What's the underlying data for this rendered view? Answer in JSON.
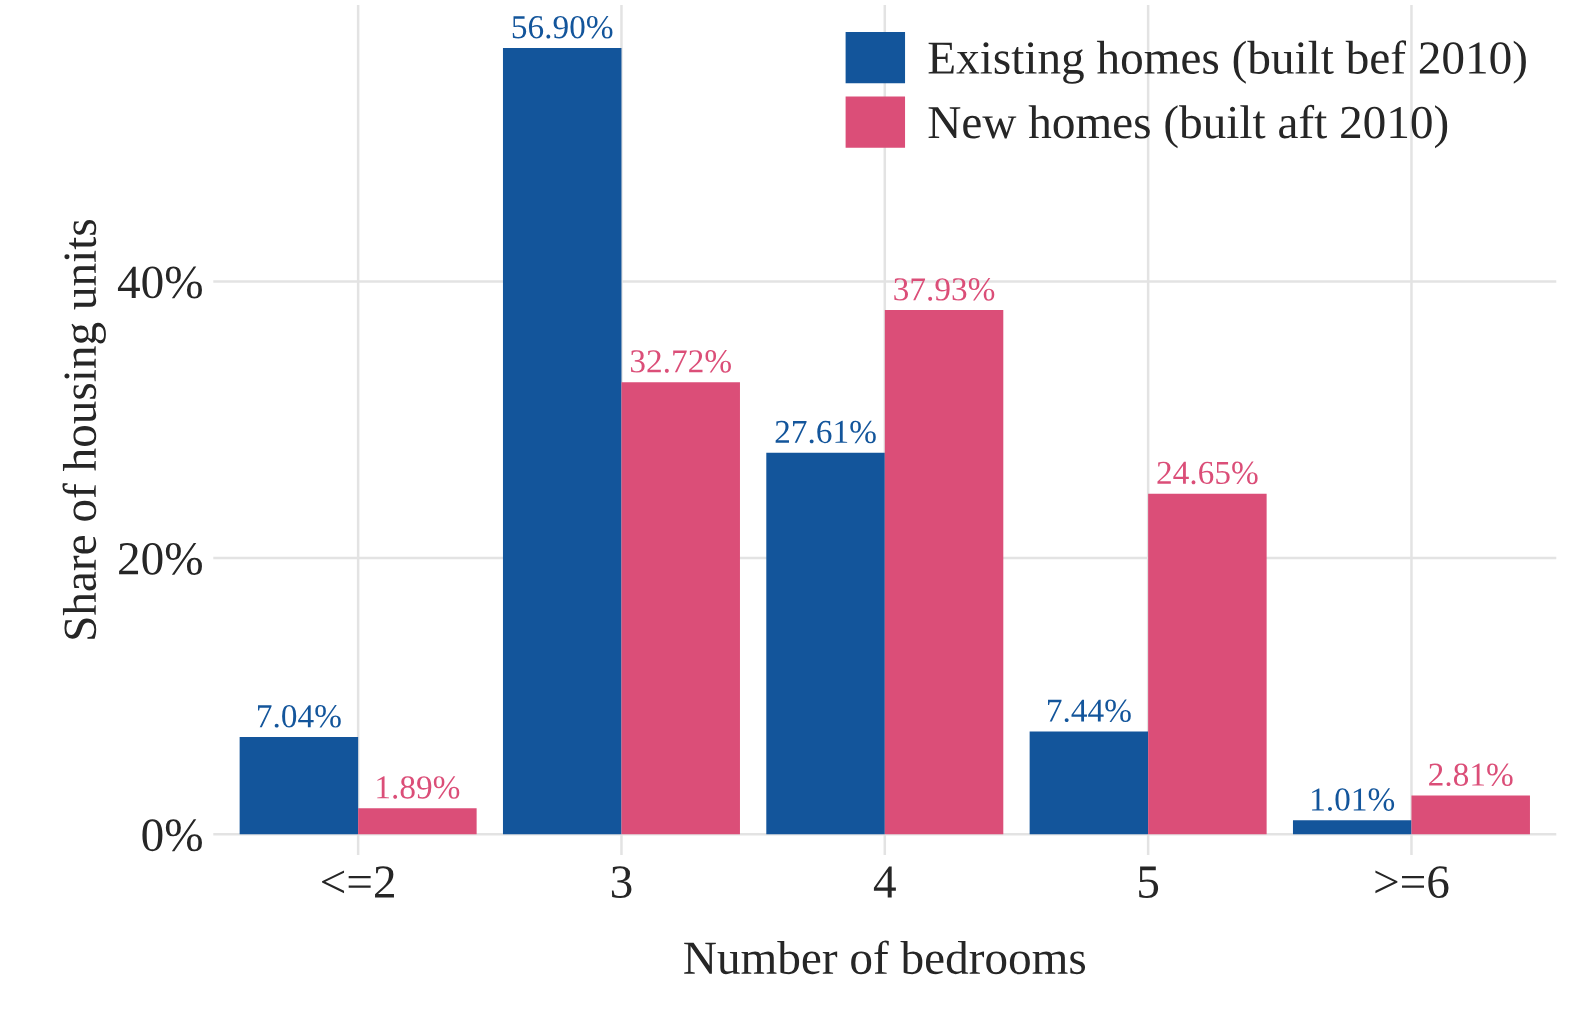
{
  "chart_data": {
    "type": "bar",
    "xlabel": "Number of bedrooms",
    "ylabel": "Share of housing units",
    "categories": [
      "<=2",
      "3",
      "4",
      "5",
      ">=6"
    ],
    "series": [
      {
        "name": "Existing homes (built bef 2010)",
        "color": "#13559b",
        "values": [
          7.04,
          56.9,
          27.61,
          7.44,
          1.01
        ],
        "value_labels": [
          "7.04%",
          "56.90%",
          "27.61%",
          "7.44%",
          "1.01%"
        ]
      },
      {
        "name": "New homes (built aft 2010)",
        "color": "#db4e78",
        "values": [
          1.89,
          32.72,
          37.93,
          24.65,
          2.81
        ],
        "value_labels": [
          "1.89%",
          "32.72%",
          "37.93%",
          "24.65%",
          "2.81%"
        ]
      }
    ],
    "ylim": [
      -1.5,
      60
    ],
    "yticks": [
      {
        "value": 0,
        "label": "0%"
      },
      {
        "value": 20,
        "label": "20%"
      },
      {
        "value": 40,
        "label": "40%"
      }
    ],
    "grid": true,
    "legend": "top right"
  }
}
